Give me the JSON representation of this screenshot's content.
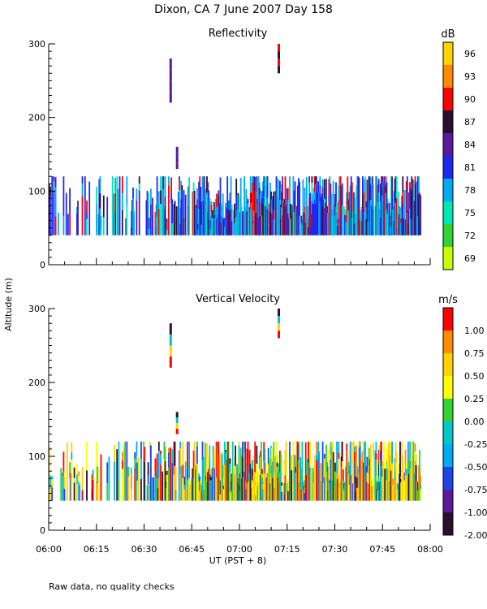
{
  "title": "Dixon, CA  7 June 2007  Day 158",
  "note": "Raw data, no quality checks",
  "chart_data": [
    {
      "type": "heatmap",
      "title": "Reflectivity",
      "ylabel": "Altitude (m)",
      "xlabel": "UT  (PST + 8)",
      "xlim": [
        "06:00",
        "08:00"
      ],
      "xticks": [
        "06:00",
        "06:15",
        "06:30",
        "06:45",
        "07:00",
        "07:15",
        "07:30",
        "07:45",
        "08:00"
      ],
      "ylim": [
        0,
        300
      ],
      "yticks": [
        "0",
        "100",
        "200",
        "300"
      ],
      "colorbar": {
        "unit": "dB",
        "labels": [
          "96",
          "93",
          "90",
          "87",
          "84",
          "81",
          "78",
          "75",
          "72",
          "69"
        ],
        "colors": [
          "#FFD200",
          "#FF8C00",
          "#FF0000",
          "#2A0F2E",
          "#5A1A9A",
          "#1E28F0",
          "#00AAF0",
          "#00E6B4",
          "#32D232",
          "#C8FF00"
        ]
      },
      "features": {
        "echo_base_m": 40,
        "echo_top_m": 120,
        "echo_start": "06:00",
        "echo_end": "07:57",
        "isolated_echoes": [
          {
            "time": "06:38",
            "bottom_m": 220,
            "top_m": 280
          },
          {
            "time": "06:40",
            "bottom_m": 130,
            "top_m": 160
          },
          {
            "time": "07:12",
            "bottom_m": 260,
            "top_m": 300
          }
        ]
      }
    },
    {
      "type": "heatmap",
      "title": "Vertical Velocity",
      "ylabel": "Altitude (m)",
      "xlabel": "UT  (PST + 8)",
      "xlim": [
        "06:00",
        "08:00"
      ],
      "xticks": [
        "06:00",
        "06:15",
        "06:30",
        "06:45",
        "07:00",
        "07:15",
        "07:30",
        "07:45",
        "08:00"
      ],
      "ylim": [
        0,
        300
      ],
      "yticks": [
        "0",
        "100",
        "200",
        "300"
      ],
      "colorbar": {
        "unit": "m/s",
        "labels": [
          "1.00",
          "0.75",
          "0.50",
          "0.25",
          "0.00",
          "-0.25",
          "-0.50",
          "-0.75",
          "-1.00",
          "-2.00"
        ],
        "colors": [
          "#FF0000",
          "#FF8C00",
          "#FFD200",
          "#FFFF00",
          "#32D232",
          "#00C8C8",
          "#00AAF0",
          "#1E46E6",
          "#5A1A9A",
          "#2A0F2E"
        ]
      },
      "features": {
        "echo_base_m": 40,
        "echo_top_m": 120,
        "echo_start": "06:00",
        "echo_end": "07:57",
        "isolated_echoes": [
          {
            "time": "06:38",
            "bottom_m": 220,
            "top_m": 280
          },
          {
            "time": "06:40",
            "bottom_m": 130,
            "top_m": 160
          },
          {
            "time": "07:12",
            "bottom_m": 260,
            "top_m": 300
          }
        ]
      }
    }
  ]
}
